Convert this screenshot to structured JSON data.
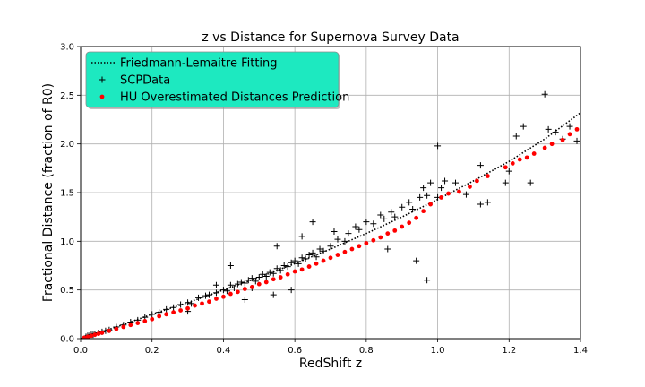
{
  "chart_data": {
    "type": "scatter",
    "title": "z vs Distance for Supernova Survey Data",
    "xlabel": "RedShift z",
    "ylabel": "Fractional Distance (fraction of R0)",
    "xlim": [
      0,
      1.4
    ],
    "ylim": [
      0,
      3.0
    ],
    "xticks": [
      "0.0",
      "0.2",
      "0.4",
      "0.6",
      "0.8",
      "1.0",
      "1.2",
      "1.4"
    ],
    "yticks": [
      "0.0",
      "0.5",
      "1.0",
      "1.5",
      "2.0",
      "2.5",
      "3.0"
    ],
    "grid": true,
    "legend_position": "top-left",
    "legend_background": "#1de9c0",
    "series": [
      {
        "name": "Friedmann-Lemaitre Fitting",
        "style": "dotted-line",
        "color": "#000000",
        "x": [
          0.0,
          0.1,
          0.2,
          0.3,
          0.4,
          0.5,
          0.6,
          0.7,
          0.8,
          0.9,
          1.0,
          1.1,
          1.2,
          1.3,
          1.4
        ],
        "y": [
          0.0,
          0.12,
          0.25,
          0.37,
          0.5,
          0.63,
          0.77,
          0.92,
          1.08,
          1.25,
          1.43,
          1.62,
          1.82,
          2.05,
          2.32
        ]
      },
      {
        "name": "SCPData",
        "style": "plus",
        "color": "#000000",
        "x": [
          0.015,
          0.02,
          0.025,
          0.03,
          0.035,
          0.04,
          0.05,
          0.06,
          0.07,
          0.08,
          0.1,
          0.12,
          0.14,
          0.16,
          0.18,
          0.2,
          0.22,
          0.24,
          0.26,
          0.28,
          0.3,
          0.31,
          0.33,
          0.35,
          0.36,
          0.38,
          0.4,
          0.41,
          0.42,
          0.43,
          0.44,
          0.45,
          0.46,
          0.47,
          0.48,
          0.49,
          0.5,
          0.51,
          0.52,
          0.53,
          0.54,
          0.55,
          0.56,
          0.57,
          0.58,
          0.59,
          0.6,
          0.61,
          0.62,
          0.63,
          0.64,
          0.65,
          0.66,
          0.67,
          0.68,
          0.7,
          0.72,
          0.74,
          0.75,
          0.77,
          0.78,
          0.8,
          0.82,
          0.84,
          0.85,
          0.87,
          0.88,
          0.9,
          0.92,
          0.93,
          0.95,
          0.96,
          0.97,
          0.98,
          1.0,
          1.01,
          1.02,
          1.05,
          1.08,
          1.12,
          1.14,
          1.19,
          1.2,
          1.22,
          1.24,
          1.26,
          1.3,
          1.31,
          1.33,
          1.35,
          1.37,
          1.39,
          0.62,
          0.42,
          0.55,
          0.38,
          0.59,
          0.65,
          0.71,
          0.46,
          0.54,
          0.97,
          0.94,
          0.86,
          0.3,
          0.48,
          1.12,
          1.0
        ],
        "y": [
          0.02,
          0.03,
          0.03,
          0.04,
          0.04,
          0.05,
          0.06,
          0.07,
          0.08,
          0.09,
          0.12,
          0.14,
          0.17,
          0.19,
          0.22,
          0.25,
          0.27,
          0.3,
          0.32,
          0.35,
          0.37,
          0.36,
          0.42,
          0.44,
          0.45,
          0.47,
          0.5,
          0.49,
          0.55,
          0.52,
          0.56,
          0.58,
          0.57,
          0.6,
          0.62,
          0.59,
          0.63,
          0.66,
          0.64,
          0.68,
          0.67,
          0.72,
          0.7,
          0.75,
          0.74,
          0.78,
          0.8,
          0.77,
          0.83,
          0.82,
          0.86,
          0.88,
          0.84,
          0.92,
          0.9,
          0.95,
          1.02,
          1.0,
          1.08,
          1.15,
          1.12,
          1.2,
          1.18,
          1.27,
          1.23,
          1.3,
          1.25,
          1.35,
          1.4,
          1.33,
          1.45,
          1.55,
          1.47,
          1.6,
          1.98,
          1.55,
          1.62,
          1.6,
          1.48,
          1.78,
          1.4,
          1.6,
          1.72,
          2.08,
          2.18,
          1.6,
          2.51,
          2.15,
          2.12,
          2.05,
          2.18,
          2.03,
          1.05,
          0.75,
          0.95,
          0.55,
          0.5,
          1.2,
          1.1,
          0.4,
          0.45,
          0.6,
          0.8,
          0.92,
          0.28,
          0.52,
          1.38,
          1.45
        ]
      },
      {
        "name": "HU Overestimated Distances Prediction",
        "style": "dot",
        "color": "#ff0000",
        "x": [
          0.01,
          0.02,
          0.03,
          0.04,
          0.05,
          0.06,
          0.08,
          0.1,
          0.12,
          0.14,
          0.16,
          0.18,
          0.2,
          0.22,
          0.24,
          0.26,
          0.28,
          0.3,
          0.32,
          0.34,
          0.36,
          0.38,
          0.4,
          0.42,
          0.44,
          0.46,
          0.48,
          0.5,
          0.52,
          0.54,
          0.56,
          0.58,
          0.6,
          0.62,
          0.64,
          0.66,
          0.68,
          0.7,
          0.72,
          0.74,
          0.76,
          0.78,
          0.8,
          0.82,
          0.84,
          0.86,
          0.88,
          0.9,
          0.92,
          0.94,
          0.96,
          0.98,
          1.01,
          1.03,
          1.06,
          1.09,
          1.11,
          1.14,
          1.19,
          1.21,
          1.23,
          1.25,
          1.27,
          1.3,
          1.32,
          1.35,
          1.37,
          1.39
        ],
        "y": [
          0.01,
          0.02,
          0.03,
          0.04,
          0.05,
          0.06,
          0.08,
          0.1,
          0.12,
          0.14,
          0.16,
          0.18,
          0.2,
          0.23,
          0.25,
          0.27,
          0.29,
          0.31,
          0.34,
          0.36,
          0.38,
          0.41,
          0.43,
          0.46,
          0.48,
          0.51,
          0.53,
          0.56,
          0.58,
          0.61,
          0.63,
          0.66,
          0.69,
          0.71,
          0.74,
          0.77,
          0.8,
          0.83,
          0.86,
          0.89,
          0.92,
          0.95,
          0.98,
          1.01,
          1.04,
          1.08,
          1.11,
          1.15,
          1.19,
          1.24,
          1.31,
          1.38,
          1.45,
          1.49,
          1.51,
          1.56,
          1.62,
          1.67,
          1.76,
          1.8,
          1.84,
          1.86,
          1.9,
          1.96,
          2.0,
          2.04,
          2.1,
          2.15
        ]
      }
    ]
  }
}
